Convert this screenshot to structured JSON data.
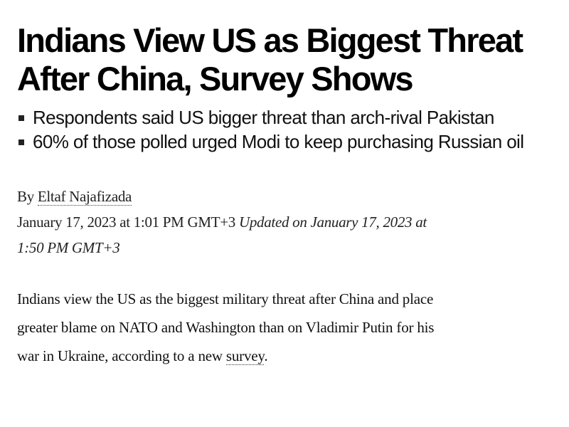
{
  "article": {
    "headline": "Indians View US as Biggest Threat After China, Survey Shows",
    "summary": [
      "Respondents said US bigger threat than arch-rival Pakistan",
      "60% of those polled urged Modi to keep purchasing Russian oil"
    ],
    "byline": {
      "prefix": "By",
      "author": "Eltaf Najafizada"
    },
    "published": "January 17, 2023 at 1:01 PM GMT+3",
    "updated": "Updated on January 17, 2023 at 1:50 PM GMT+3",
    "body": {
      "text_before_link": "Indians view the US as the biggest military threat after China and place greater blame on NATO and Washington than on Vladimir Putin for his war in Ukraine, according to a new ",
      "link_text": "survey",
      "text_after_link": "."
    }
  }
}
